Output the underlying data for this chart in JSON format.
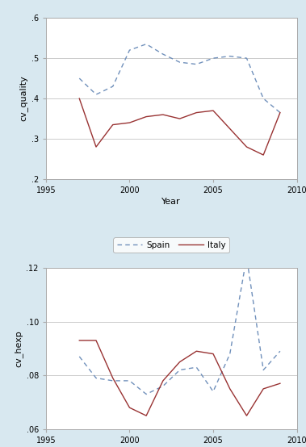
{
  "top_chart": {
    "ylabel": "cv_quality",
    "xlabel": "Year",
    "xlim": [
      1995,
      2010
    ],
    "ylim": [
      0.2,
      0.6
    ],
    "yticks": [
      0.2,
      0.3,
      0.4,
      0.5,
      0.6
    ],
    "xticks": [
      1995,
      2000,
      2005,
      2010
    ],
    "spain": {
      "years": [
        1997,
        1998,
        1999,
        2000,
        2001,
        2002,
        2003,
        2004,
        2005,
        2006,
        2007,
        2008,
        2009
      ],
      "values": [
        0.45,
        0.41,
        0.43,
        0.52,
        0.535,
        0.51,
        0.49,
        0.485,
        0.5,
        0.505,
        0.5,
        0.4,
        0.365
      ],
      "color": "#7090bb",
      "linestyle": "--",
      "label": "Spain"
    },
    "italy": {
      "years": [
        1997,
        1998,
        1999,
        2000,
        2001,
        2002,
        2003,
        2004,
        2005,
        2006,
        2007,
        2008,
        2009
      ],
      "values": [
        0.4,
        0.28,
        0.335,
        0.34,
        0.355,
        0.36,
        0.35,
        0.365,
        0.37,
        0.325,
        0.28,
        0.26,
        0.365
      ],
      "color": "#993333",
      "linestyle": "-",
      "label": "Italy"
    }
  },
  "bottom_chart": {
    "ylabel": "cv_hexp",
    "xlabel": "Year",
    "xlim": [
      1995,
      2010
    ],
    "ylim": [
      0.06,
      0.12
    ],
    "yticks": [
      0.06,
      0.08,
      0.1,
      0.12
    ],
    "xticks": [
      1995,
      2000,
      2005,
      2010
    ],
    "spain": {
      "years": [
        1997,
        1998,
        1999,
        2000,
        2001,
        2002,
        2003,
        2004,
        2005,
        2006,
        2007,
        2008,
        2009
      ],
      "values": [
        0.087,
        0.079,
        0.078,
        0.078,
        0.073,
        0.076,
        0.082,
        0.083,
        0.074,
        0.088,
        0.124,
        0.082,
        0.089
      ],
      "color": "#7090bb",
      "linestyle": "--",
      "label": "spain"
    },
    "italy": {
      "years": [
        1997,
        1998,
        1999,
        2000,
        2001,
        2002,
        2003,
        2004,
        2005,
        2006,
        2007,
        2008,
        2009
      ],
      "values": [
        0.093,
        0.093,
        0.079,
        0.068,
        0.065,
        0.078,
        0.085,
        0.089,
        0.088,
        0.075,
        0.065,
        0.075,
        0.077
      ],
      "color": "#993333",
      "linestyle": "-",
      "label": "italy"
    }
  },
  "fig_bg_color": "#d8e8f0",
  "plot_bg_color": "#ffffff",
  "grid_color": "#cccccc",
  "spine_color": "#aaaaaa",
  "legend_bg_color": "#ffffff",
  "legend_edge_color": "#aaaaaa",
  "tick_label_size": 7,
  "axis_label_size": 8,
  "line_width": 1.0,
  "dash_pattern": [
    4,
    3
  ]
}
